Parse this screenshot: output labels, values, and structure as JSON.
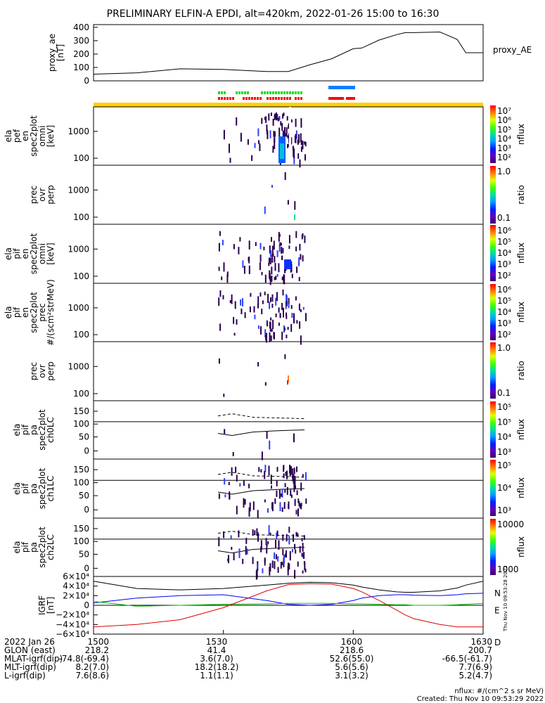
{
  "title": "PRELIMINARY ELFIN-A EPDI, alt=420km, 2022-01-26 15:00 to 16:30",
  "chart_data": [
    {
      "type": "line",
      "name": "proxy_ae",
      "ylabel_lines": [
        "proxy_ae",
        "[nT]"
      ],
      "legend": "proxy_AE",
      "yticks": [
        "400",
        "300",
        "200",
        "100",
        "0"
      ],
      "ylim": [
        0,
        420
      ],
      "x_minutes": [
        0,
        10,
        20,
        30,
        40,
        45,
        50,
        55,
        60,
        62,
        66,
        70,
        72,
        74,
        80,
        84,
        86,
        90
      ],
      "values": [
        50,
        60,
        90,
        85,
        70,
        70,
        120,
        165,
        240,
        245,
        305,
        345,
        360,
        360,
        365,
        310,
        210,
        210
      ]
    },
    {
      "type": "heatmap",
      "ylabel_lines": [
        "ela",
        "pef",
        "en",
        "spec2plot",
        "omni",
        "[keV]"
      ],
      "yticks": [
        "1000",
        "100"
      ],
      "colorbar": {
        "label": "nflux",
        "ticks": [
          "10⁷",
          "10⁶",
          "10⁵",
          "10⁴",
          "10³",
          "10²"
        ]
      }
    },
    {
      "type": "heatmap",
      "ylabel_lines": [
        "prec",
        "ovr",
        "perp"
      ],
      "yticks": [
        "1000",
        "100"
      ],
      "colorbar": {
        "label": "ratio",
        "ticks": [
          "1.0",
          "0.1"
        ]
      }
    },
    {
      "type": "heatmap",
      "ylabel_lines": [
        "ela",
        "pif",
        "en",
        "spec2plot",
        "omni",
        "[keV]"
      ],
      "yticks": [
        "1000",
        "100"
      ],
      "colorbar": {
        "label": "nflux",
        "ticks": [
          "10⁶",
          "10⁵",
          "10⁴",
          "10³",
          "10²"
        ]
      }
    },
    {
      "type": "heatmap",
      "ylabel_lines": [
        "ela",
        "pif",
        "en",
        "spec2plot",
        "prec",
        "#/(scm²strMeV)"
      ],
      "yticks": [
        "1000",
        "100"
      ],
      "colorbar": {
        "label": "nflux",
        "ticks": [
          "10⁶",
          "10⁵",
          "10⁴",
          "10³",
          "10²"
        ]
      }
    },
    {
      "type": "heatmap",
      "ylabel_lines": [
        "prec",
        "ovr",
        "perp"
      ],
      "yticks": [
        "1000",
        "100"
      ],
      "colorbar": {
        "label": "ratio",
        "ticks": [
          "1.0",
          "0.1"
        ]
      }
    },
    {
      "type": "heatmap",
      "ylabel_lines": [
        "ela",
        "pif",
        "pa",
        "spec2plot",
        "ch0LC"
      ],
      "yticks": [
        "150",
        "100",
        "50",
        "0"
      ],
      "colorbar": {
        "label": "nflux",
        "ticks": [
          "10⁵",
          "10⁵",
          "10⁴",
          "10³"
        ]
      }
    },
    {
      "type": "heatmap",
      "ylabel_lines": [
        "ela",
        "pif",
        "pa",
        "spec2plot",
        "ch1LC"
      ],
      "yticks": [
        "150",
        "100",
        "50",
        "0"
      ],
      "colorbar": {
        "label": "nflux",
        "ticks": [
          "10⁵",
          "10⁴",
          "10³"
        ]
      }
    },
    {
      "type": "heatmap",
      "ylabel_lines": [
        "ela",
        "pif",
        "pa",
        "spec2plot",
        "ch2LC"
      ],
      "yticks": [
        "150",
        "100",
        "50",
        "0"
      ],
      "colorbar": {
        "label": "nflux",
        "ticks": [
          "10000",
          "1000"
        ]
      }
    },
    {
      "type": "line",
      "ylabel_lines": [
        "IGRF",
        "[nT]"
      ],
      "yticks": [
        "6×10⁴",
        "4×10⁴",
        "2×10⁴",
        "0",
        "−2×10⁴",
        "−4×10⁴",
        "−6×10⁴"
      ],
      "ylim": [
        -60000,
        60000
      ],
      "x_minutes": [
        0,
        10,
        20,
        30,
        40,
        45,
        50,
        55,
        60,
        62,
        66,
        70,
        72,
        74,
        80,
        84,
        86,
        90
      ],
      "series": [
        {
          "name": "N",
          "color": "#0000ff",
          "values": [
            5000,
            15000,
            20000,
            22000,
            10000,
            2000,
            0,
            2000,
            10000,
            15000,
            20000,
            22000,
            22000,
            21000,
            20000,
            22000,
            24000,
            25000
          ]
        },
        {
          "name": "E",
          "color": "#00c000",
          "values": [
            8000,
            -2000,
            0,
            2000,
            3000,
            4000,
            4000,
            4000,
            3000,
            3000,
            2000,
            1000,
            1000,
            0,
            0,
            1000,
            2000,
            4000
          ]
        },
        {
          "name": "D",
          "color": "#e00000",
          "values": [
            -45000,
            -40000,
            -30000,
            -5000,
            30000,
            43000,
            45000,
            44000,
            35000,
            28000,
            10000,
            -10000,
            -20000,
            -28000,
            -40000,
            -45000,
            -45000,
            -45000
          ]
        },
        {
          "name": "",
          "color": "#000000",
          "values": [
            50000,
            35000,
            32000,
            35000,
            42000,
            46000,
            48000,
            47000,
            42000,
            38000,
            32000,
            28000,
            27000,
            27000,
            30000,
            36000,
            42000,
            50000
          ]
        }
      ]
    }
  ],
  "time_axis": {
    "labels": [
      "1500",
      "1530",
      "1600",
      "1630"
    ],
    "rows": [
      {
        "name": "2022 Jan 26",
        "values": [
          "1500",
          "1530",
          "1600",
          "1630"
        ]
      },
      {
        "name": "GLON (east)",
        "values": [
          "218.2",
          "41.4",
          "218.6",
          "200.7"
        ]
      },
      {
        "name": "MLAT-igrf(dip)",
        "values": [
          "-74.8(-69.4)",
          "3.6(7.0)",
          "52.6(55.0)",
          "-66.5(-61.7)"
        ]
      },
      {
        "name": "MLT-igrf(dip)",
        "values": [
          "8.2(7.0)",
          "18.2(18.2)",
          "5.6(5.6)",
          "7.7(6.9)"
        ]
      },
      {
        "name": "L-igrf(dip)",
        "values": [
          "7.6(8.6)",
          "1.1(1.1)",
          "3.1(3.2)",
          "5.2(4.7)"
        ]
      }
    ]
  },
  "side_stamp": "Thu Nov 10 09:53:28 2022",
  "footer": {
    "units": "nflux: #/(cm^2 s sr MeV)",
    "created": "Created: Thu Nov 10 09:53:29 2022"
  },
  "colors": {
    "bar_yellow": "#ffd000",
    "mark_green": "#00e000",
    "mark_red": "#ff0000",
    "mark_blue": "#0080ff"
  }
}
